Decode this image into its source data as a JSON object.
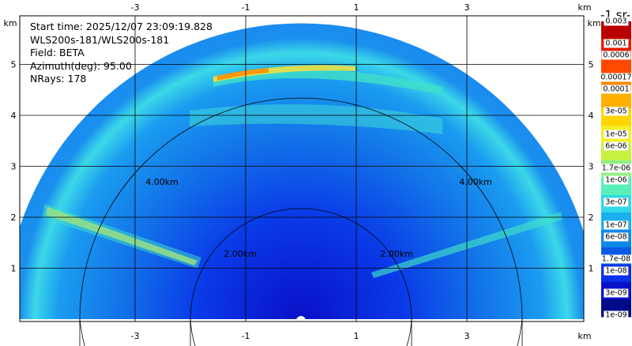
{
  "info": {
    "start_time": "Start time: 2025/12/07 23:09:19.828",
    "instrument": "WLS200s-181/WLS200s-181",
    "field": "Field: BETA",
    "azimuth": "Azimuth(deg): 95.00",
    "nrays": "NRays: 178"
  },
  "colorbar": {
    "title": "-1 sr-",
    "labels": [
      "0.003",
      "0.001",
      "0.0006",
      "0.00017",
      "0.0001",
      "3e-05",
      "1e-05",
      "6e-06",
      "1.7e-06",
      "1e-06",
      "3e-07",
      "1e-07",
      "6e-08",
      "1.7e-08",
      "1e-08",
      "3e-09",
      "1e-09"
    ],
    "colors": [
      "#b80000",
      "#e61c00",
      "#ff4800",
      "#ff8800",
      "#ffb000",
      "#ffd400",
      "#f3ee24",
      "#c8f040",
      "#90f080",
      "#58f0b8",
      "#30d8e8",
      "#1ab0f0",
      "#1088e8",
      "#0a5ae6",
      "#0a30e8",
      "#0a10c8",
      "#000a8a"
    ]
  },
  "chart_data": {
    "type": "heatmap",
    "description_type": "lidar RHI sector scan",
    "x_unit": "km",
    "y_unit": "km",
    "xlim": [
      -5.0,
      5.0
    ],
    "ylim": [
      0,
      6
    ],
    "x_ticks": [
      -3,
      -1,
      1,
      3
    ],
    "x_tick_labels": [
      "-3",
      "-1",
      "1",
      "3"
    ],
    "y_ticks": [
      1,
      2,
      3,
      4,
      5
    ],
    "y_tick_labels": [
      "1",
      "2",
      "3",
      "4",
      "5"
    ],
    "range_rings_km": [
      2.0,
      4.0
    ],
    "range_ring_labels": [
      "2.00km",
      "4.00km"
    ],
    "max_range_km": 5.35,
    "grid": true,
    "field": "BETA",
    "azimuth_deg": 95.0,
    "nrays": 178
  }
}
